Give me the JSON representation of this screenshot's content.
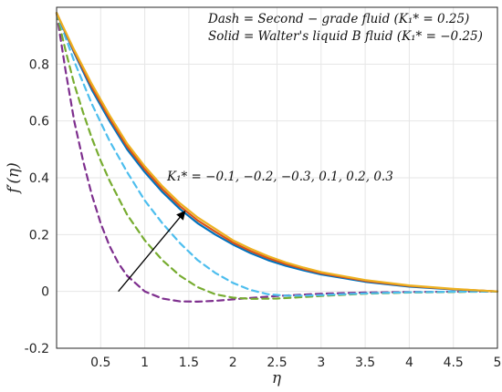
{
  "chart_data": {
    "type": "line",
    "xlabel": "η",
    "ylabel": "f′(η)",
    "xlim": [
      0,
      5
    ],
    "ylim": [
      -0.2,
      1.0
    ],
    "x_ticks": [
      0.5,
      1,
      1.5,
      2,
      2.5,
      3,
      3.5,
      4,
      4.5,
      5
    ],
    "x_tick_labels": [
      "0.5",
      "1",
      "1.5",
      "2",
      "2.5",
      "3",
      "3.5",
      "4",
      "4.5",
      "5"
    ],
    "y_ticks": [
      -0.2,
      0,
      0.2,
      0.4,
      0.6,
      0.8
    ],
    "y_tick_labels": [
      "-0.2",
      "0",
      "0.2",
      "0.4",
      "0.6",
      "0.8"
    ],
    "grid": true,
    "legend_lines": [
      "Dash = Second − grade fluid (K₁* = 0.25)",
      "Solid = Walter's liquid B fluid (K₁* = −0.25)"
    ],
    "annotation": "K₁* = −0.1, −0.2, −0.3, 0.1, 0.2, 0.3",
    "arrow": {
      "from": [
        0.7,
        0.0
      ],
      "to": [
        1.45,
        0.28
      ]
    },
    "series": [
      {
        "style": "dashed",
        "color": "#7E2F8E",
        "x": [
          0,
          0.1,
          0.2,
          0.3,
          0.4,
          0.5,
          0.6,
          0.7,
          0.8,
          1.0,
          1.2,
          1.4,
          1.6,
          1.8,
          2.0,
          2.2,
          2.5,
          3.0,
          3.5,
          4.0,
          4.5,
          5.0
        ],
        "y": [
          0.98,
          0.78,
          0.6,
          0.46,
          0.34,
          0.24,
          0.16,
          0.1,
          0.055,
          0.0,
          -0.025,
          -0.035,
          -0.036,
          -0.033,
          -0.028,
          -0.023,
          -0.016,
          -0.008,
          -0.004,
          -0.002,
          -0.001,
          0
        ]
      },
      {
        "style": "dashed",
        "color": "#77AC30",
        "x": [
          0,
          0.1,
          0.2,
          0.3,
          0.4,
          0.5,
          0.6,
          0.7,
          0.8,
          1.0,
          1.2,
          1.4,
          1.6,
          1.8,
          2.0,
          2.2,
          2.5,
          3.0,
          3.5,
          4.0,
          4.5,
          5.0
        ],
        "y": [
          0.98,
          0.85,
          0.73,
          0.63,
          0.54,
          0.46,
          0.39,
          0.33,
          0.27,
          0.18,
          0.11,
          0.055,
          0.015,
          -0.01,
          -0.022,
          -0.026,
          -0.025,
          -0.016,
          -0.008,
          -0.004,
          -0.002,
          0
        ]
      },
      {
        "style": "dashed",
        "color": "#4DBEEE",
        "x": [
          0,
          0.2,
          0.4,
          0.6,
          0.8,
          1.0,
          1.2,
          1.4,
          1.6,
          1.8,
          2.0,
          2.2,
          2.4,
          2.6,
          2.8,
          3.0,
          3.5,
          4.0,
          4.5,
          5.0
        ],
        "y": [
          0.98,
          0.81,
          0.66,
          0.53,
          0.42,
          0.32,
          0.24,
          0.17,
          0.11,
          0.065,
          0.03,
          0.005,
          -0.01,
          -0.015,
          -0.015,
          -0.013,
          -0.007,
          -0.003,
          -0.001,
          0
        ]
      },
      {
        "style": "solid",
        "color": "#0072BD",
        "x": [
          0,
          0.2,
          0.4,
          0.6,
          0.8,
          1.0,
          1.2,
          1.4,
          1.6,
          1.8,
          2.0,
          2.2,
          2.4,
          2.6,
          2.8,
          3.0,
          3.5,
          4.0,
          4.5,
          5.0
        ],
        "y": [
          0.98,
          0.84,
          0.71,
          0.6,
          0.5,
          0.42,
          0.35,
          0.29,
          0.24,
          0.2,
          0.165,
          0.135,
          0.11,
          0.09,
          0.074,
          0.06,
          0.034,
          0.017,
          0.007,
          0
        ]
      },
      {
        "style": "solid",
        "color": "#D95319",
        "x": [
          0,
          0.2,
          0.4,
          0.6,
          0.8,
          1.0,
          1.2,
          1.4,
          1.6,
          1.8,
          2.0,
          2.2,
          2.4,
          2.6,
          2.8,
          3.0,
          3.5,
          4.0,
          4.5,
          5.0
        ],
        "y": [
          0.98,
          0.845,
          0.72,
          0.61,
          0.51,
          0.43,
          0.36,
          0.3,
          0.25,
          0.21,
          0.172,
          0.142,
          0.117,
          0.096,
          0.079,
          0.064,
          0.037,
          0.019,
          0.008,
          0
        ]
      },
      {
        "style": "solid",
        "color": "#EDB120",
        "x": [
          0,
          0.2,
          0.4,
          0.6,
          0.8,
          1.0,
          1.2,
          1.4,
          1.6,
          1.8,
          2.0,
          2.2,
          2.4,
          2.6,
          2.8,
          3.0,
          3.5,
          4.0,
          4.5,
          5.0
        ],
        "y": [
          0.98,
          0.85,
          0.73,
          0.62,
          0.52,
          0.44,
          0.37,
          0.31,
          0.26,
          0.22,
          0.18,
          0.15,
          0.124,
          0.102,
          0.084,
          0.068,
          0.04,
          0.021,
          0.009,
          0
        ]
      }
    ]
  }
}
